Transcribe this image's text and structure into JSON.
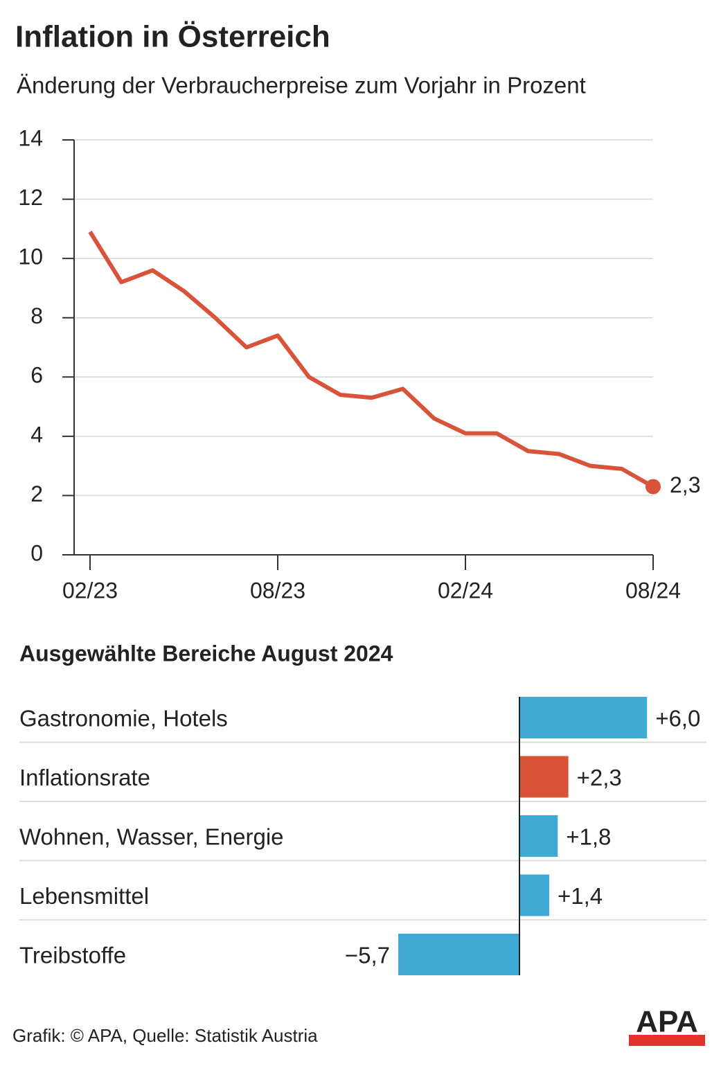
{
  "title": "Inflation in Österreich",
  "chart_data": [
    {
      "type": "line",
      "subtitle": "Änderung der Verbraucherpreise zum Vorjahr in Prozent",
      "categories": [
        "02/23",
        null,
        null,
        null,
        null,
        null,
        "08/23",
        null,
        null,
        null,
        null,
        null,
        "02/24",
        null,
        null,
        null,
        null,
        null,
        "08/24"
      ],
      "series": [
        {
          "name": null,
          "color": "#d9533a",
          "values": [
            10.9,
            9.2,
            9.6,
            8.9,
            8.0,
            7.0,
            7.4,
            6.0,
            5.4,
            5.3,
            5.6,
            4.6,
            4.1,
            4.1,
            3.5,
            3.4,
            3.0,
            2.9,
            2.3
          ],
          "value_labels": [
            null,
            null,
            null,
            null,
            null,
            null,
            null,
            null,
            null,
            null,
            null,
            null,
            null,
            null,
            null,
            null,
            null,
            null,
            "2,3"
          ]
        }
      ],
      "ylim": [
        0,
        14
      ],
      "yticks": [
        0,
        2,
        4,
        6,
        8,
        10,
        12,
        14
      ],
      "grid": true
    },
    {
      "type": "hbar",
      "title": "Ausgewählte Bereiche August 2024",
      "categories": [
        "Gastronomie, Hotels",
        "Inflationsrate",
        "Wohnen, Wasser, Energie",
        "Lebensmittel",
        "Treibstoffe"
      ],
      "values": [
        6.0,
        2.3,
        1.8,
        1.4,
        -5.7
      ],
      "value_labels": [
        "+6,0",
        "+2,3",
        "+1,8",
        "+1,4",
        "−5,7"
      ],
      "colors": [
        "#3fa9d6",
        "#d9533a",
        "#3fa9d6",
        "#3fa9d6",
        "#3fa9d6"
      ]
    }
  ],
  "source": "Grafik: © APA, Quelle: Statistik Austria",
  "logo": "APA"
}
